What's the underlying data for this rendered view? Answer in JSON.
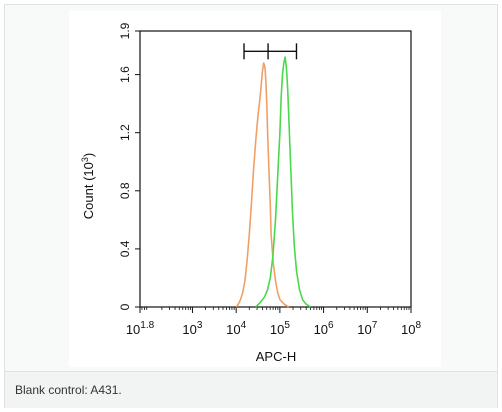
{
  "caption": "Blank control: A431.",
  "chart_data": {
    "type": "line",
    "xscale": "log",
    "xlim_log10": [
      1.8,
      8
    ],
    "ylim": [
      0,
      1.9
    ],
    "xlabel": "APC-H",
    "ylabel": "Count (10^3)",
    "ylabel_parts": {
      "main": "Count (10",
      "exp": "3",
      "close": ")"
    },
    "x_ticks": [
      {
        "base": "10",
        "exp": "1.8",
        "log": 1.8
      },
      {
        "base": "10",
        "exp": "3",
        "log": 3
      },
      {
        "base": "10",
        "exp": "4",
        "log": 4
      },
      {
        "base": "10",
        "exp": "5",
        "log": 5
      },
      {
        "base": "10",
        "exp": "6",
        "log": 6
      },
      {
        "base": "10",
        "exp": "7",
        "log": 7
      },
      {
        "base": "10",
        "exp": "8",
        "log": 8
      }
    ],
    "y_ticks": [
      {
        "label": "0",
        "value": 0
      },
      {
        "label": "0.4",
        "value": 0.4
      },
      {
        "label": "0.8",
        "value": 0.8
      },
      {
        "label": "1.2",
        "value": 1.2
      },
      {
        "label": "1.6",
        "value": 1.6
      },
      {
        "label": "1.9",
        "value": 1.9
      }
    ],
    "gate": {
      "left_log": 4.18,
      "mid_log": 4.73,
      "right_log": 5.38,
      "y": 1.76
    },
    "series": [
      {
        "color": "#f0a066",
        "points": [
          [
            4.0,
            0
          ],
          [
            4.05,
            0.02
          ],
          [
            4.1,
            0.05
          ],
          [
            4.15,
            0.1
          ],
          [
            4.2,
            0.18
          ],
          [
            4.25,
            0.32
          ],
          [
            4.3,
            0.5
          ],
          [
            4.35,
            0.72
          ],
          [
            4.4,
            0.95
          ],
          [
            4.45,
            1.15
          ],
          [
            4.5,
            1.32
          ],
          [
            4.55,
            1.45
          ],
          [
            4.58,
            1.55
          ],
          [
            4.6,
            1.62
          ],
          [
            4.63,
            1.68
          ],
          [
            4.66,
            1.65
          ],
          [
            4.68,
            1.55
          ],
          [
            4.7,
            1.4
          ],
          [
            4.72,
            1.2
          ],
          [
            4.75,
            0.95
          ],
          [
            4.78,
            0.7
          ],
          [
            4.8,
            0.5
          ],
          [
            4.85,
            0.3
          ],
          [
            4.9,
            0.18
          ],
          [
            4.95,
            0.1
          ],
          [
            5.0,
            0.05
          ],
          [
            5.1,
            0.02
          ],
          [
            5.2,
            0
          ]
        ]
      },
      {
        "color": "#4cd84c",
        "points": [
          [
            4.45,
            0
          ],
          [
            4.55,
            0.03
          ],
          [
            4.65,
            0.07
          ],
          [
            4.72,
            0.12
          ],
          [
            4.78,
            0.2
          ],
          [
            4.84,
            0.35
          ],
          [
            4.9,
            0.6
          ],
          [
            4.95,
            0.9
          ],
          [
            5.0,
            1.2
          ],
          [
            5.03,
            1.45
          ],
          [
            5.06,
            1.6
          ],
          [
            5.09,
            1.68
          ],
          [
            5.12,
            1.72
          ],
          [
            5.15,
            1.65
          ],
          [
            5.18,
            1.5
          ],
          [
            5.21,
            1.25
          ],
          [
            5.25,
            0.95
          ],
          [
            5.29,
            0.65
          ],
          [
            5.33,
            0.42
          ],
          [
            5.38,
            0.25
          ],
          [
            5.45,
            0.12
          ],
          [
            5.52,
            0.05
          ],
          [
            5.6,
            0.02
          ],
          [
            5.7,
            0
          ]
        ]
      }
    ]
  }
}
